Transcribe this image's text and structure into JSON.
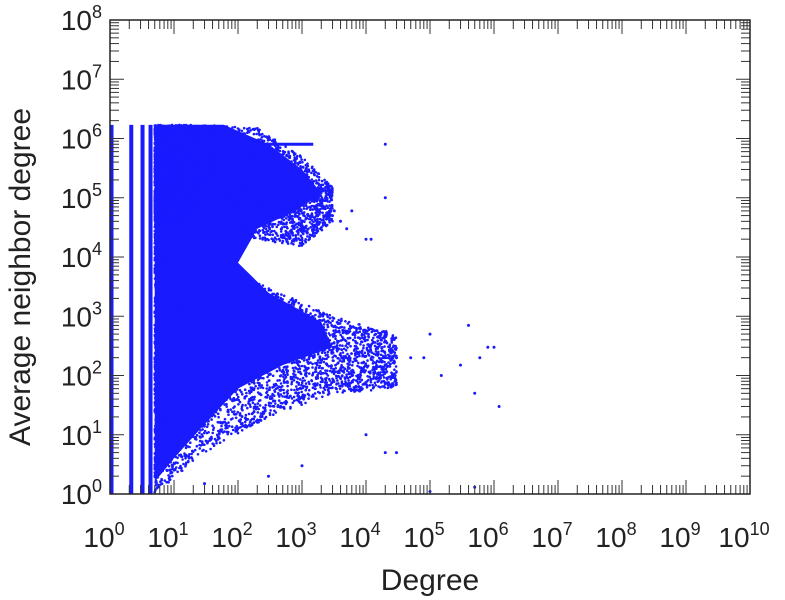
{
  "chart_data": {
    "type": "scatter",
    "title": "",
    "xlabel": "Degree",
    "ylabel": "Average neighbor degree",
    "x_scale": "log",
    "y_scale": "log",
    "xlim": [
      1,
      10000000000
    ],
    "ylim": [
      1,
      100000000
    ],
    "x_tick_labels": [
      {
        "base": "10",
        "exp": "0"
      },
      {
        "base": "10",
        "exp": "1"
      },
      {
        "base": "10",
        "exp": "2"
      },
      {
        "base": "10",
        "exp": "3"
      },
      {
        "base": "10",
        "exp": "4"
      },
      {
        "base": "10",
        "exp": "5"
      },
      {
        "base": "10",
        "exp": "6"
      },
      {
        "base": "10",
        "exp": "7"
      },
      {
        "base": "10",
        "exp": "8"
      },
      {
        "base": "10",
        "exp": "9"
      },
      {
        "base": "10",
        "exp": "10"
      }
    ],
    "y_tick_labels": [
      {
        "base": "10",
        "exp": "0"
      },
      {
        "base": "10",
        "exp": "1"
      },
      {
        "base": "10",
        "exp": "2"
      },
      {
        "base": "10",
        "exp": "3"
      },
      {
        "base": "10",
        "exp": "4"
      },
      {
        "base": "10",
        "exp": "5"
      },
      {
        "base": "10",
        "exp": "6"
      },
      {
        "base": "10",
        "exp": "7"
      },
      {
        "base": "10",
        "exp": "8"
      }
    ],
    "grid": false,
    "legend": "none",
    "marker_color": "#1a1aff",
    "dense_columns": [
      {
        "x": 1,
        "y_range": [
          1,
          1700000
        ]
      },
      {
        "x": 2,
        "y_range": [
          1,
          1700000
        ]
      },
      {
        "x": 3,
        "y_range": [
          1,
          1700000
        ]
      },
      {
        "x": 4,
        "y_range": [
          1,
          1700000
        ]
      }
    ],
    "upper_band": {
      "description_points": [
        {
          "x": 5,
          "y_low": 30000,
          "y_high": 1700000
        },
        {
          "x": 30,
          "y_low": 40000,
          "y_high": 1700000
        },
        {
          "x": 200,
          "y_low": 20000,
          "y_high": 1500000
        },
        {
          "x": 1000,
          "y_low": 15000,
          "y_high": 500000
        },
        {
          "x": 3000,
          "y_low": 40000,
          "y_high": 150000
        }
      ]
    },
    "lower_band": {
      "description_points": [
        {
          "x": 5,
          "y_low": 1,
          "y_high": 30000
        },
        {
          "x": 30,
          "y_low": 5,
          "y_high": 10000
        },
        {
          "x": 300,
          "y_low": 20,
          "y_high": 3000
        },
        {
          "x": 3000,
          "y_low": 50,
          "y_high": 1000
        },
        {
          "x": 30000,
          "y_low": 60,
          "y_high": 500
        }
      ]
    },
    "horizontal_line": {
      "x_range": [
        50,
        1500
      ],
      "y": 800000
    },
    "outliers": [
      {
        "x": 3000,
        "y": 50000
      },
      {
        "x": 3200,
        "y": 60000
      },
      {
        "x": 4000,
        "y": 40000
      },
      {
        "x": 5000,
        "y": 30000
      },
      {
        "x": 6000,
        "y": 60000
      },
      {
        "x": 10000,
        "y": 20000
      },
      {
        "x": 12000,
        "y": 20000
      },
      {
        "x": 20000,
        "y": 100000
      },
      {
        "x": 20000,
        "y": 800000
      },
      {
        "x": 30000,
        "y": 200
      },
      {
        "x": 50000,
        "y": 200
      },
      {
        "x": 80000,
        "y": 200
      },
      {
        "x": 100000,
        "y": 500
      },
      {
        "x": 150000,
        "y": 100
      },
      {
        "x": 300000,
        "y": 150
      },
      {
        "x": 400000,
        "y": 700
      },
      {
        "x": 500000,
        "y": 50
      },
      {
        "x": 600000,
        "y": 200
      },
      {
        "x": 800000,
        "y": 300
      },
      {
        "x": 1000000,
        "y": 300
      },
      {
        "x": 1200000,
        "y": 30
      },
      {
        "x": 500000,
        "y": 1.3
      },
      {
        "x": 100000,
        "y": 1.1
      },
      {
        "x": 20000,
        "y": 5
      },
      {
        "x": 10000,
        "y": 10
      },
      {
        "x": 30000,
        "y": 5
      },
      {
        "x": 1000,
        "y": 3
      },
      {
        "x": 300,
        "y": 2
      },
      {
        "x": 30,
        "y": 1.5
      }
    ]
  }
}
